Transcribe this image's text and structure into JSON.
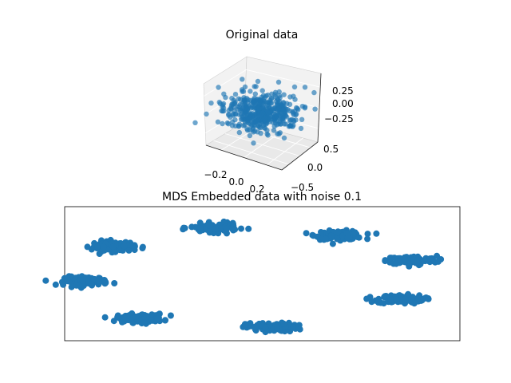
{
  "chart_data": [
    {
      "type": "scatter",
      "projection": "3d",
      "title": "Original data",
      "color": "#1f77b4",
      "x_ticks": [
        "−0.2",
        "0.0",
        "0.2"
      ],
      "y_ticks": [
        "0.5",
        "0.0",
        "−0.5"
      ],
      "z_ticks": [
        "0.25",
        "0.00",
        "−0.25"
      ],
      "xlim": [
        -0.35,
        0.35
      ],
      "ylim": [
        -0.7,
        0.7
      ],
      "zlim": [
        -0.4,
        0.4
      ],
      "grid": true
    },
    {
      "type": "scatter",
      "title": "MDS Embedded data with noise 0.1",
      "color": "#1f77b4",
      "axes_ticks": false,
      "xlim": [
        -1.1,
        1.1
      ],
      "ylim": [
        -1.1,
        1.1
      ],
      "clusters": [
        {
          "center": [
            0.43,
            0.63
          ],
          "spread": [
            0.13,
            0.05
          ]
        },
        {
          "center": [
            0.83,
            0.22
          ],
          "spread": [
            0.14,
            0.05
          ]
        },
        {
          "center": [
            0.77,
            -0.42
          ],
          "spread": [
            0.13,
            0.05
          ]
        },
        {
          "center": [
            0.05,
            -0.88
          ],
          "spread": [
            0.14,
            0.05
          ]
        },
        {
          "center": [
            -0.68,
            -0.73
          ],
          "spread": [
            0.13,
            0.05
          ]
        },
        {
          "center": [
            -0.98,
            -0.12
          ],
          "spread": [
            0.12,
            0.05
          ]
        },
        {
          "center": [
            -0.83,
            0.45
          ],
          "spread": [
            0.12,
            0.06
          ]
        },
        {
          "center": [
            -0.27,
            0.75
          ],
          "spread": [
            0.13,
            0.05
          ]
        }
      ]
    }
  ]
}
